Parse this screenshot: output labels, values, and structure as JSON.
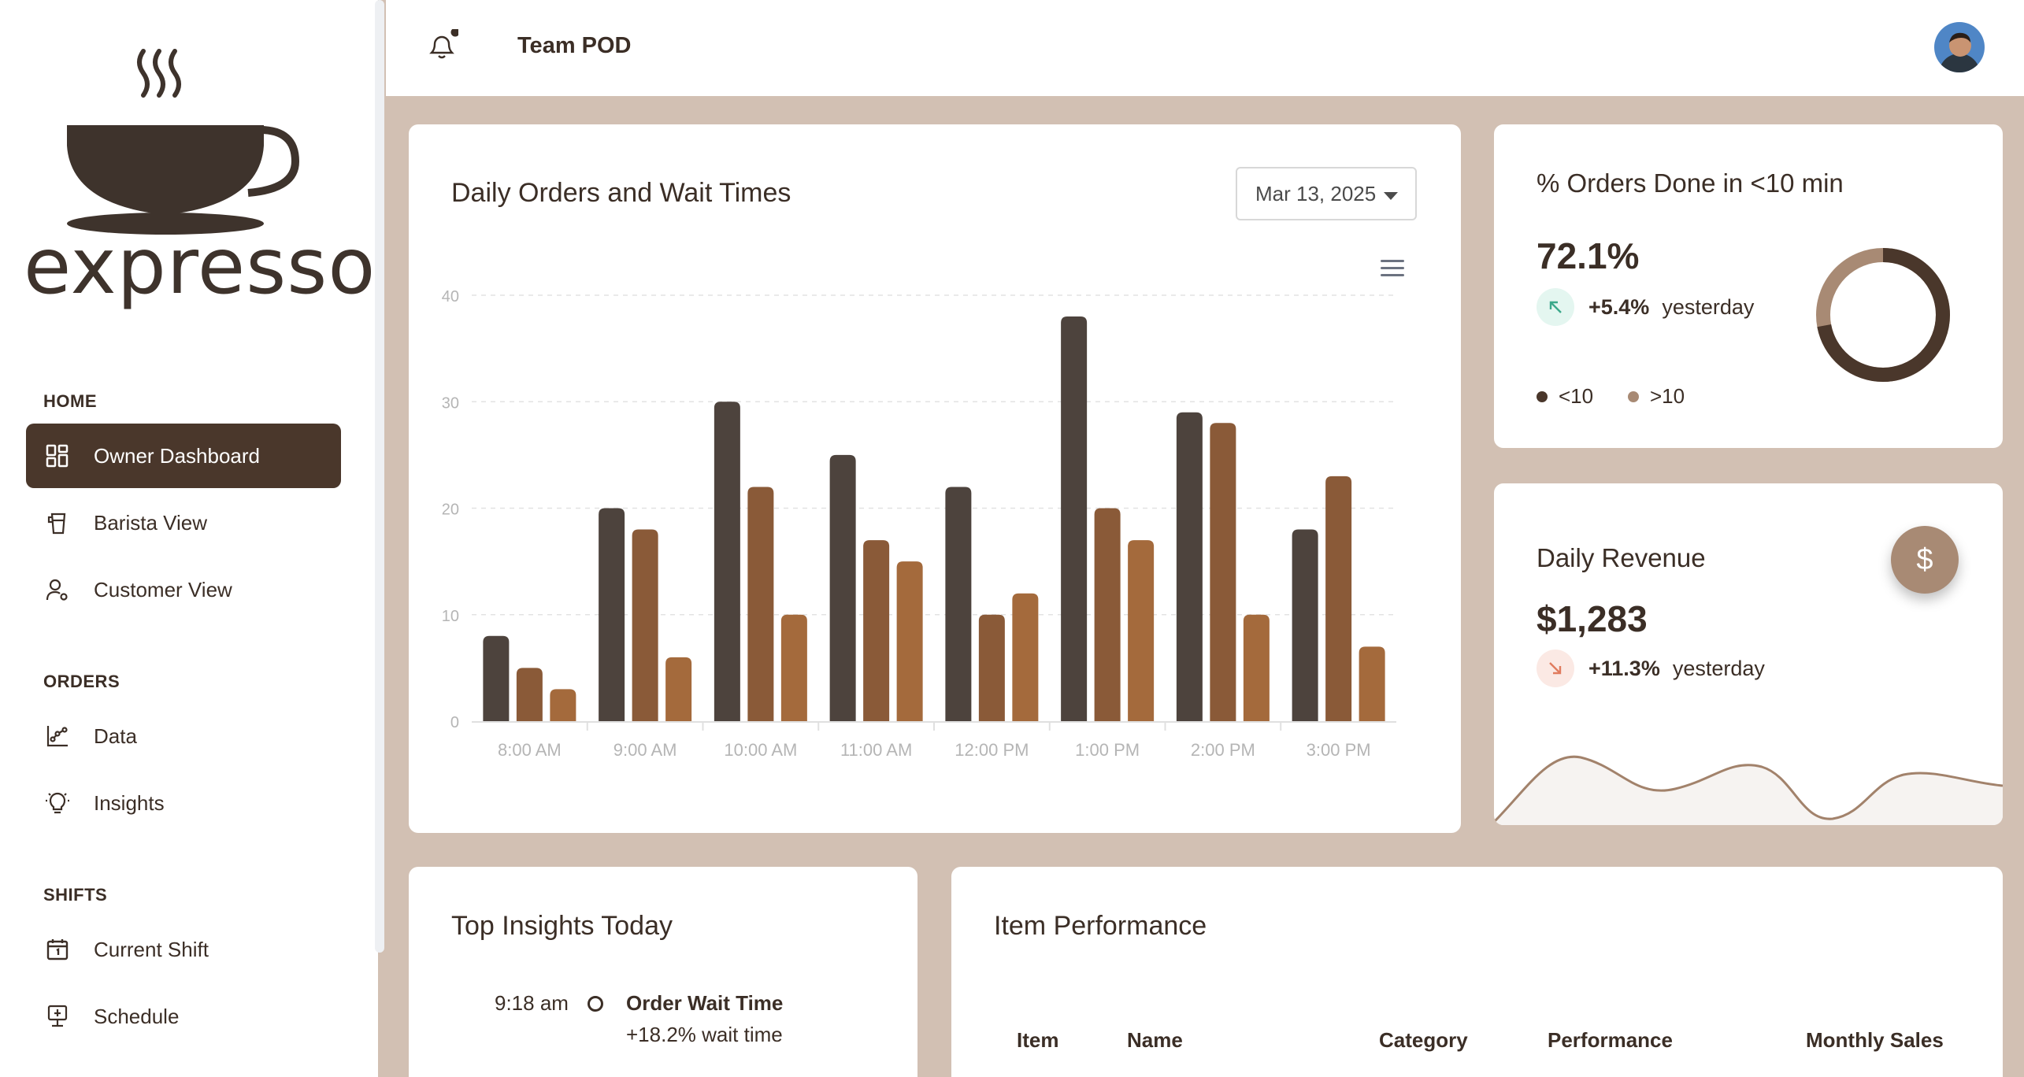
{
  "app": {
    "logo_text": "expresso"
  },
  "sidebar": {
    "sections": [
      {
        "label": "HOME"
      },
      {
        "label": "ORDERS"
      },
      {
        "label": "SHIFTS"
      }
    ],
    "items": [
      {
        "label": "Owner Dashboard",
        "icon": "dashboard-icon",
        "active": true
      },
      {
        "label": "Barista View",
        "icon": "coffee-pot-icon"
      },
      {
        "label": "Customer View",
        "icon": "user-settings-icon"
      },
      {
        "label": "Data",
        "icon": "chart-nodes-icon"
      },
      {
        "label": "Insights",
        "icon": "lightbulb-icon"
      },
      {
        "label": "Current Shift",
        "icon": "calendar-icon"
      },
      {
        "label": "Schedule",
        "icon": "schedule-icon"
      }
    ]
  },
  "header": {
    "title": "Team POD",
    "notification_dot": true
  },
  "chart_card": {
    "title": "Daily Orders and Wait Times",
    "date_select": "Mar 13, 2025"
  },
  "chart_data": {
    "type": "bar",
    "categories": [
      "8:00 AM",
      "9:00 AM",
      "10:00 AM",
      "11:00 AM",
      "12:00 PM",
      "1:00 PM",
      "2:00 PM",
      "3:00 PM"
    ],
    "series": [
      {
        "values": [
          8,
          20,
          30,
          25,
          22,
          38,
          29,
          18
        ],
        "color": "#4d433d"
      },
      {
        "values": [
          5,
          18,
          22,
          17,
          10,
          20,
          28,
          23
        ],
        "color": "#8a5a38"
      },
      {
        "values": [
          3,
          6,
          10,
          15,
          12,
          17,
          10,
          7
        ],
        "color": "#a46a3c"
      }
    ],
    "ylim": [
      0,
      40
    ],
    "yticks": [
      "0",
      "10",
      "20",
      "30",
      "40"
    ],
    "grid": true
  },
  "orders_done": {
    "title": "% Orders Done in <10 min",
    "value": "72.1%",
    "change": "+5.4%",
    "change_label": "yesterday",
    "legend": [
      {
        "label": "<10",
        "color": "#4a372b"
      },
      {
        "label": ">10",
        "color": "#a88a74"
      }
    ],
    "donut_fraction_under10": 0.721
  },
  "revenue": {
    "title": "Daily Revenue",
    "value": "$1,283",
    "change": "+11.3%",
    "change_label": "yesterday",
    "button_symbol": "$"
  },
  "insights": {
    "title": "Top Insights Today",
    "items": [
      {
        "time": "9:18 am",
        "title": "Order Wait Time",
        "detail": "+18.2% wait time"
      }
    ]
  },
  "items_table": {
    "title": "Item Performance",
    "columns": [
      "Item",
      "Name",
      "Category",
      "Performance",
      "Monthly Sales"
    ]
  }
}
